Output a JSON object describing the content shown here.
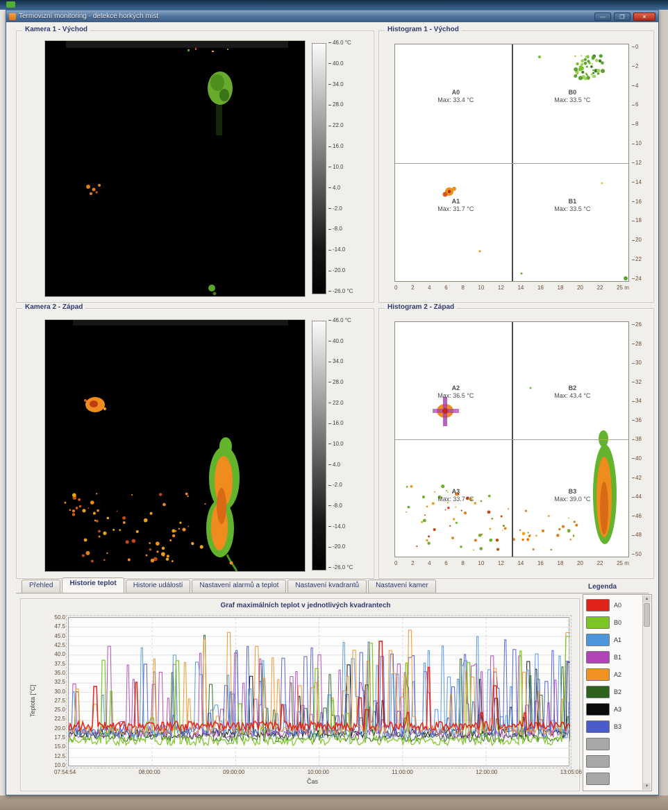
{
  "window": {
    "title": "Termovizní monitoring - detekce horkých míst",
    "controls": {
      "minimize": "—",
      "maximize": "❐",
      "close": "✕"
    }
  },
  "colorbar": {
    "labels": [
      "46.0 °C",
      "40.0",
      "34.0",
      "28.0",
      "22.0",
      "16.0",
      "10.0",
      "4.0",
      "-2.0",
      "-8.0",
      "-14.0",
      "-20.0",
      "-26.0 °C"
    ]
  },
  "panels": {
    "camera1": {
      "title": "Kamera 1 - Východ"
    },
    "camera2": {
      "title": "Kamera 2 - Západ"
    },
    "histogram1": {
      "title": "Histogram 1 - Východ",
      "quadrants": [
        {
          "name": "A0",
          "max": "Max: 33.4 °C"
        },
        {
          "name": "B0",
          "max": "Max: 33.5 °C"
        },
        {
          "name": "A1",
          "max": "Max: 31.7 °C"
        },
        {
          "name": "B1",
          "max": "Max: 33.5 °C"
        }
      ],
      "x_ticks": [
        "0",
        "2",
        "4",
        "6",
        "8",
        "10",
        "12",
        "14",
        "16",
        "18",
        "20",
        "22",
        "25 m"
      ],
      "y_ticks": [
        "0",
        "2",
        "4",
        "6",
        "8",
        "10",
        "12",
        "14",
        "16",
        "18",
        "20",
        "22",
        "24"
      ]
    },
    "histogram2": {
      "title": "Histogram 2 - Západ",
      "quadrants": [
        {
          "name": "A2",
          "max": "Max: 36.5 °C"
        },
        {
          "name": "B2",
          "max": "Max: 43.4 °C"
        },
        {
          "name": "A3",
          "max": "Max: 33.7 °C"
        },
        {
          "name": "B3",
          "max": "Max: 39.0 °C"
        }
      ],
      "x_ticks": [
        "0",
        "2",
        "4",
        "6",
        "8",
        "10",
        "12",
        "14",
        "16",
        "18",
        "20",
        "22",
        "25 m"
      ],
      "y_ticks": [
        "26",
        "28",
        "30",
        "32",
        "34",
        "36",
        "38",
        "40",
        "42",
        "44",
        "46",
        "48",
        "50"
      ]
    }
  },
  "tabs": [
    {
      "label": "Přehled",
      "selected": false
    },
    {
      "label": "Historie teplot",
      "selected": true
    },
    {
      "label": "Historie událostí",
      "selected": false
    },
    {
      "label": "Nastavení alarmů a teplot",
      "selected": false
    },
    {
      "label": "Nastavení kvadrantů",
      "selected": false
    },
    {
      "label": "Nastavení kamer",
      "selected": false
    }
  ],
  "chart_data": {
    "type": "line",
    "title": "Graf maximálních teplot v jednotlivých kvadrantech",
    "xlabel": "Čas",
    "ylabel": "Teplota [°C]",
    "x_ticks": [
      "07:54:54",
      "08:00:00",
      "09:00:00",
      "10:00:00",
      "11:00:00",
      "12:00:00",
      "13:05:06"
    ],
    "y_ticks": [
      "50.0",
      "47.5",
      "45.0",
      "42.5",
      "40.0",
      "37.5",
      "35.0",
      "32.5",
      "30.0",
      "27.5",
      "25.0",
      "22.5",
      "20.0",
      "17.5",
      "15.0",
      "12.5",
      "10.0"
    ],
    "ylim": [
      10,
      50
    ],
    "grid": true,
    "legend_position": "right",
    "seed": 1337,
    "series": [
      {
        "name": "A0",
        "color": "#e02318",
        "base": 21,
        "spike_max": 44,
        "density": 0.12,
        "width": 1.6
      },
      {
        "name": "B0",
        "color": "#7cc623",
        "base": 17,
        "spike_max": 46,
        "density": 0.22,
        "width": 1.3
      },
      {
        "name": "A1",
        "color": "#4d96dc",
        "base": 19,
        "spike_max": 45,
        "density": 0.5,
        "width": 1.0
      },
      {
        "name": "B1",
        "color": "#b144b7",
        "base": 19,
        "spike_max": 43,
        "density": 0.38,
        "width": 1.0
      },
      {
        "name": "A2",
        "color": "#f19122",
        "base": 20,
        "spike_max": 47,
        "density": 0.5,
        "width": 1.0
      },
      {
        "name": "B2",
        "color": "#2d611d",
        "base": 18,
        "spike_max": 46,
        "density": 0.2,
        "width": 1.0
      },
      {
        "name": "A3",
        "color": "#0a0a0a",
        "base": 19,
        "spike_max": 44,
        "density": 0.15,
        "width": 1.0
      },
      {
        "name": "B3",
        "color": "#4a5ccb",
        "base": 20,
        "spike_max": 45,
        "density": 0.45,
        "width": 1.0
      }
    ]
  },
  "legend": {
    "title": "Legenda",
    "items": [
      {
        "label": "A0",
        "color": "#e02318"
      },
      {
        "label": "B0",
        "color": "#7cc623"
      },
      {
        "label": "A1",
        "color": "#4d96dc"
      },
      {
        "label": "B1",
        "color": "#b144b7"
      },
      {
        "label": "A2",
        "color": "#f19122"
      },
      {
        "label": "B2",
        "color": "#2d611d"
      },
      {
        "label": "A3",
        "color": "#0a0a0a"
      },
      {
        "label": "B3",
        "color": "#4a5ccb"
      }
    ],
    "empty_slots": 3,
    "empty_color": "#a8a8a8"
  }
}
